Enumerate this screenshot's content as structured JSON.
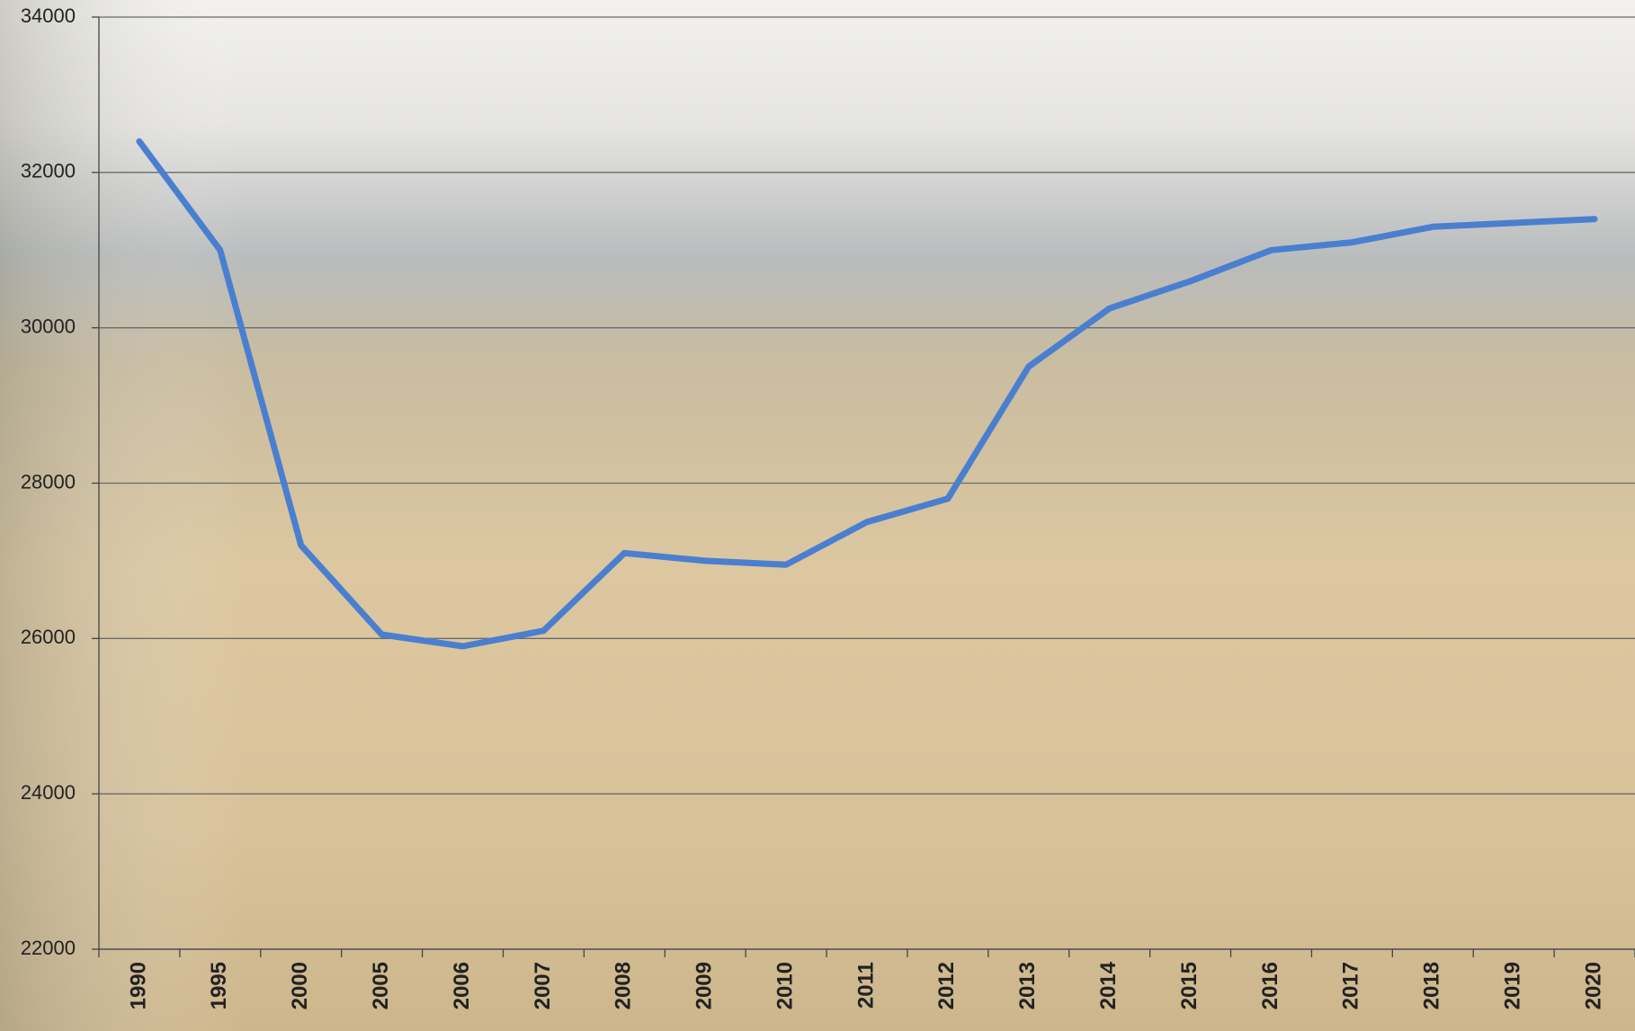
{
  "chart_data": {
    "type": "line",
    "categories": [
      "1990",
      "1995",
      "2000",
      "2005",
      "2006",
      "2007",
      "2008",
      "2009",
      "2010",
      "2011",
      "2012",
      "2013",
      "2014",
      "2015",
      "2016",
      "2017",
      "2018",
      "2019",
      "2020"
    ],
    "series": [
      {
        "color": "#4a7fd0",
        "values": [
          32400,
          31000,
          27200,
          26050,
          25900,
          26100,
          27100,
          27000,
          26950,
          27500,
          27800,
          29500,
          30250,
          30600,
          31000,
          31100,
          31300,
          31350,
          31400
        ]
      }
    ],
    "ylim": [
      22000,
      34000
    ],
    "yticks": [
      22000,
      24000,
      26000,
      28000,
      30000,
      32000,
      34000
    ],
    "grid": true
  }
}
